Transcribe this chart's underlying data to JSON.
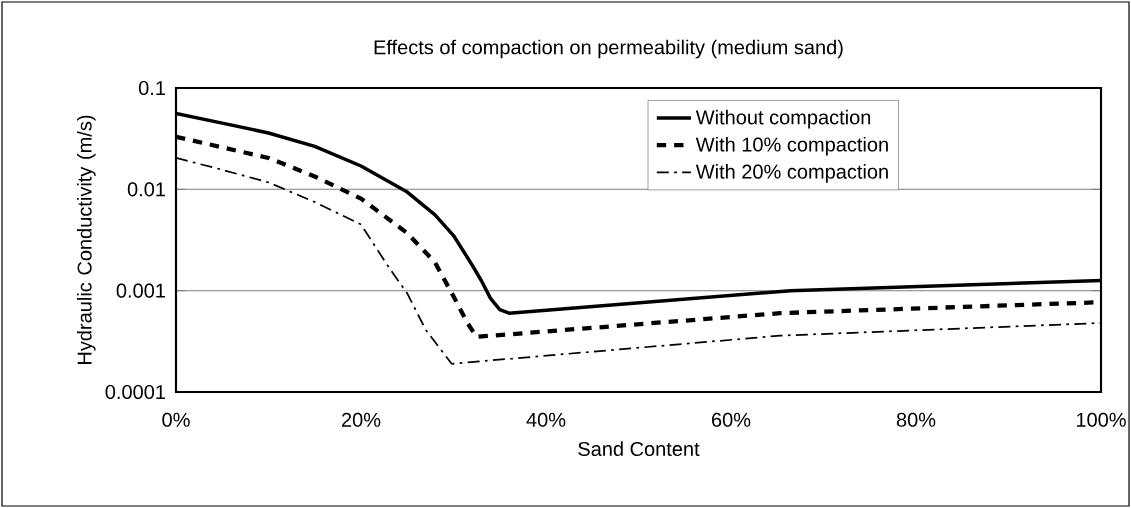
{
  "chart_data": {
    "type": "line",
    "title": "Effects of compaction on permeability (medium sand)",
    "xlabel": "Sand Content",
    "ylabel": "Hydraulic Conductivity (m/s)",
    "log": "y",
    "xlim": [
      0,
      1
    ],
    "ylim": [
      0.0001,
      0.1
    ],
    "xticks": [
      {
        "value": 0,
        "label": "0%"
      },
      {
        "value": 0.2,
        "label": "20%"
      },
      {
        "value": 0.4,
        "label": "40%"
      },
      {
        "value": 0.6,
        "label": "60%"
      },
      {
        "value": 0.8,
        "label": "80%"
      },
      {
        "value": 1,
        "label": "100%"
      }
    ],
    "yticks": [
      0.0001,
      0.001,
      0.01,
      0.1
    ],
    "grid": "y",
    "legend": "top right",
    "marker": "none",
    "series": [
      {
        "name": "Without compaction",
        "color": "#000000",
        "line_style": "solid",
        "x": [
          0,
          0.05,
          0.1,
          0.15,
          0.2,
          0.25,
          0.28,
          0.3,
          0.32,
          0.33,
          0.34,
          0.35,
          0.36,
          0.664,
          1
        ],
        "values": [
          0.056,
          0.045,
          0.036,
          0.0265,
          0.017,
          0.0094,
          0.0056,
          0.0035,
          0.0018,
          0.00126,
          0.00084,
          0.00065,
          0.0006,
          0.001,
          0.00126
        ]
      },
      {
        "name": "With 10% compaction",
        "color": "#000000",
        "line_style": "dashed",
        "x": [
          0,
          0.1,
          0.15,
          0.2,
          0.25,
          0.28,
          0.3,
          0.315,
          0.325,
          0.653,
          1
        ],
        "values": [
          0.033,
          0.0204,
          0.0134,
          0.0081,
          0.0037,
          0.0019,
          0.00088,
          0.00048,
          0.00035,
          0.0006,
          0.00077
        ]
      },
      {
        "name": "With 20% compaction",
        "color": "#000000",
        "line_style": "dashdot",
        "x": [
          0,
          0.05,
          0.1,
          0.15,
          0.2,
          0.23,
          0.25,
          0.27,
          0.298,
          0.653,
          1
        ],
        "values": [
          0.0204,
          0.0156,
          0.0117,
          0.0075,
          0.0045,
          0.0017,
          0.00094,
          0.00041,
          0.00019,
          0.00036,
          0.00048
        ]
      }
    ]
  }
}
